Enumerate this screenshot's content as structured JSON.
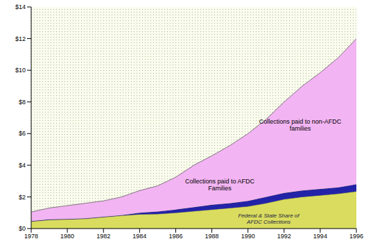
{
  "chart_data": {
    "type": "area",
    "stacked": true,
    "grid": false,
    "x": [
      1978,
      1979,
      1980,
      1981,
      1982,
      1983,
      1984,
      1985,
      1986,
      1987,
      1988,
      1989,
      1990,
      1991,
      1992,
      1993,
      1994,
      1995,
      1996
    ],
    "xlim": [
      1978,
      1996
    ],
    "xticks": [
      1978,
      1980,
      1982,
      1984,
      1986,
      1988,
      1990,
      1992,
      1994,
      1996
    ],
    "ylim": [
      0,
      14
    ],
    "yticks": [
      {
        "value": 0,
        "label": "$0"
      },
      {
        "value": 2,
        "label": "$2"
      },
      {
        "value": 4,
        "label": "$4"
      },
      {
        "value": 6,
        "label": "$6"
      },
      {
        "value": 8,
        "label": "$8"
      },
      {
        "value": 10,
        "label": "$10"
      },
      {
        "value": 12,
        "label": "$12"
      },
      {
        "value": 14,
        "label": "$14"
      }
    ],
    "series": [
      {
        "name": "Federal & State Share of AFDC Collections",
        "color": "#d9dc5e",
        "values": [
          0.45,
          0.55,
          0.58,
          0.62,
          0.72,
          0.82,
          0.9,
          0.92,
          1.0,
          1.1,
          1.2,
          1.3,
          1.4,
          1.6,
          1.85,
          2.0,
          2.1,
          2.2,
          2.35
        ]
      },
      {
        "name": "Collections paid to AFDC Families",
        "color": "#2323a8",
        "values": [
          0.02,
          0.03,
          0.02,
          0.03,
          0.03,
          0.03,
          0.1,
          0.16,
          0.2,
          0.25,
          0.3,
          0.3,
          0.35,
          0.4,
          0.4,
          0.4,
          0.4,
          0.4,
          0.45
        ]
      },
      {
        "name": "Collections paid to non-AFDC families",
        "color": "#f2b4f2",
        "values": [
          0.58,
          0.72,
          0.85,
          0.95,
          1.0,
          1.15,
          1.4,
          1.62,
          2.05,
          2.65,
          3.1,
          3.65,
          4.25,
          4.9,
          5.75,
          6.6,
          7.35,
          8.2,
          9.2
        ]
      }
    ]
  }
}
